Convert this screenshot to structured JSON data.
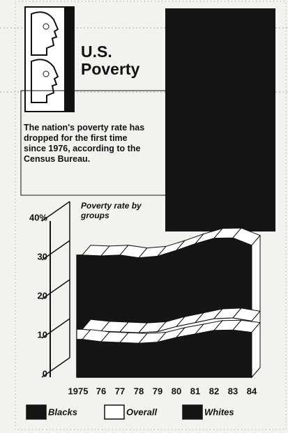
{
  "chart_data": {
    "type": "ribbon",
    "title": "U.S. Poverty",
    "subtitle": "The nation's poverty rate has dropped for the first time since 1976, according to the Census Bureau.",
    "annotation": "Poverty rate by groups",
    "categories": [
      "1975",
      "76",
      "77",
      "78",
      "79",
      "80",
      "81",
      "82",
      "83",
      "84"
    ],
    "series": [
      {
        "name": "Blacks",
        "color": "#151515",
        "values": [
          31.3,
          31.1,
          31.3,
          30.6,
          31.0,
          32.5,
          34.2,
          35.6,
          35.7,
          33.8
        ]
      },
      {
        "name": "Overall",
        "color": "#ffffff",
        "values": [
          12.3,
          11.8,
          11.6,
          11.4,
          11.7,
          13.0,
          14.0,
          15.0,
          15.2,
          14.4
        ]
      },
      {
        "name": "Whites",
        "color": "#151515",
        "values": [
          9.7,
          9.1,
          8.9,
          8.7,
          9.0,
          10.2,
          11.1,
          12.0,
          12.1,
          11.5
        ]
      }
    ],
    "ylim": [
      0,
      40
    ],
    "yticks": [
      0,
      10,
      20,
      30,
      {
        "value": 40,
        "label": "40%"
      }
    ]
  }
}
